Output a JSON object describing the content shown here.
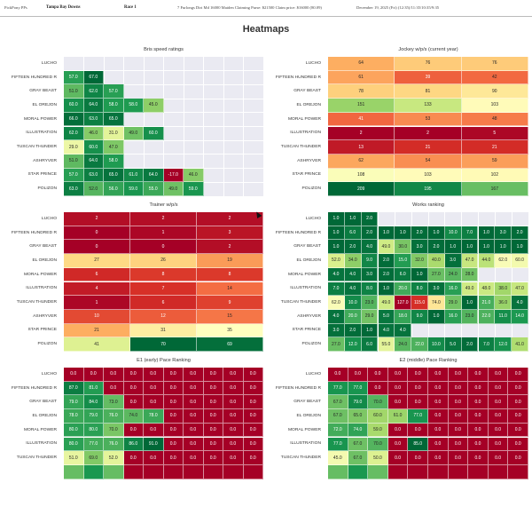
{
  "header": {
    "app_name": "PickPony PPs",
    "track": "Tampa Bay Downs",
    "race": "Race 1",
    "race_info": "7 Furlongs Dirt Md 16000 Maiden Claiming Purse: $21500 Claim price: $16000 (80.09)",
    "date": "December 19, 2025 (Fri) (12:35)/11:35/10:35/9:35"
  },
  "page_title": "Heatmaps",
  "colors": {
    "empty_bg": "#eaeaf2",
    "scale_low": "#a50026",
    "scale_mid": "#ffffbf",
    "scale_high": "#006837"
  },
  "chart_data": [
    {
      "type": "heatmap",
      "id": "bris",
      "title": "Bris speed ratings",
      "rows": [
        "LUCHO",
        "FIFTEEN HUNDRED R",
        "GRAY BEAST",
        "EL OREJON",
        "MORAL POWER",
        "ILLUSTRATION",
        "TUSCAN THUNDER",
        "ASHRYVER",
        "STAR PRINCE",
        "POLIZON"
      ],
      "n_cols": 10,
      "values": [
        [],
        [
          57.0,
          67.0
        ],
        [
          51.0,
          62.0,
          57.0
        ],
        [
          60.0,
          64.0,
          58.0,
          58.0,
          45.0
        ],
        [
          66.0,
          63.0,
          65.0
        ],
        [
          62.0,
          46.0,
          31.0,
          49.0,
          60.0
        ],
        [
          29.0,
          60.0,
          47.0
        ],
        [
          51.0,
          64.0,
          58.0
        ],
        [
          57.0,
          63.0,
          65.0,
          61.0,
          64.0,
          -17.0,
          46.0
        ],
        [
          63.0,
          52.0,
          56.0,
          59.0,
          55.0,
          49.0,
          59.0
        ]
      ],
      "value_format": "1dp",
      "vmin": -17,
      "vmax": 67,
      "colormap": "RdYlGn"
    },
    {
      "type": "heatmap",
      "id": "jockey",
      "title": "Jockey w/p/s (current year)",
      "rows": [
        "LUCHO",
        "FIFTEEN HUNDRED R",
        "GRAY BEAST",
        "EL OREJON",
        "MORAL POWER",
        "ILLUSTRATION",
        "TUSCAN THUNDER",
        "ASHRYVER",
        "STAR PRINCE",
        "POLIZON"
      ],
      "n_cols": 3,
      "values": [
        [
          64,
          76,
          76
        ],
        [
          61,
          39,
          42
        ],
        [
          78,
          81,
          90
        ],
        [
          151,
          133,
          103
        ],
        [
          41,
          53,
          48
        ],
        [
          2,
          2,
          5
        ],
        [
          13,
          21,
          21
        ],
        [
          62,
          54,
          59
        ],
        [
          108,
          103,
          102
        ],
        [
          209,
          195,
          167
        ]
      ],
      "value_format": "int",
      "vmin": 2,
      "vmax": 209,
      "colormap": "RdYlGn"
    },
    {
      "type": "heatmap",
      "id": "trainer",
      "title": "Trainer w/p/s",
      "rows": [
        "LUCHO",
        "FIFTEEN HUNDRED R",
        "GRAY BEAST",
        "EL OREJON",
        "MORAL POWER",
        "ILLUSTRATION",
        "TUSCAN THUNDER",
        "ASHRYVER",
        "STAR PRINCE",
        "POLIZON"
      ],
      "n_cols": 3,
      "values": [
        [
          2,
          2,
          2
        ],
        [
          0,
          1,
          3
        ],
        [
          0,
          0,
          2
        ],
        [
          27,
          26,
          19
        ],
        [
          6,
          8,
          8
        ],
        [
          4,
          7,
          14
        ],
        [
          1,
          6,
          9
        ],
        [
          10,
          12,
          15
        ],
        [
          21,
          31,
          35
        ],
        [
          41,
          70,
          69
        ]
      ],
      "value_format": "int",
      "vmin": 0,
      "vmax": 70,
      "colormap": "RdYlGn"
    },
    {
      "type": "heatmap",
      "id": "works",
      "title": "Works ranking",
      "rows": [
        "LUCHO",
        "FIFTEEN HUNDRED R",
        "GRAY BEAST",
        "EL OREJON",
        "MORAL POWER",
        "ILLUSTRATION",
        "TUSCAN THUNDER",
        "ASHRYVER",
        "STAR PRINCE",
        "POLIZON"
      ],
      "n_cols": 12,
      "values": [
        [
          1.0,
          1.0,
          2.0
        ],
        [
          1.0,
          6.0,
          2.0,
          1.0,
          1.0,
          2.0,
          1.0,
          10.0,
          7.0,
          1.0,
          3.0,
          2.0
        ],
        [
          1.0,
          2.0,
          4.0,
          49.0,
          30.0,
          3.0,
          2.0,
          1.0,
          1.0,
          1.0,
          1.0,
          1.0
        ],
        [
          52.0,
          34.0,
          9.0,
          2.0,
          15.0,
          32.0,
          40.0,
          3.0,
          47.0,
          44.0,
          62.0,
          60.0
        ],
        [
          4.0,
          4.0,
          3.0,
          2.0,
          6.0,
          1.0,
          27.0,
          24.0,
          28.0
        ],
        [
          7.0,
          4.0,
          8.0,
          1.0,
          20.0,
          8.0,
          3.0,
          16.0,
          49.0,
          48.0,
          38.0,
          47.0
        ],
        [
          62.0,
          10.0,
          23.0,
          49.0,
          127.0,
          115.0,
          74.0,
          29.0,
          1.0,
          21.0,
          36.0,
          4.0
        ],
        [
          4.0,
          20.0,
          29.0,
          5.0,
          18.0,
          9.0,
          1.0,
          16.0,
          23.0,
          22.0,
          11.0,
          14.0
        ],
        [
          3.0,
          2.0,
          1.0,
          4.0,
          4.0
        ],
        [
          27.0,
          12.0,
          6.0,
          55.0,
          24.0,
          22.0,
          10.0,
          5.0,
          2.0,
          7.0,
          12.0,
          41.0
        ]
      ],
      "value_format": "1dp",
      "vmin": 1,
      "vmax": 127,
      "colormap": "RdYlGn_r"
    },
    {
      "type": "heatmap",
      "id": "e1",
      "title": "E1 (early) Pace Ranking",
      "rows": [
        "LUCHO",
        "FIFTEEN HUNDRED R",
        "GRAY BEAST",
        "EL OREJON",
        "MORAL POWER",
        "ILLUSTRATION",
        "TUSCAN THUNDER"
      ],
      "n_cols": 10,
      "values": [
        [
          0.0,
          0.0,
          0.0,
          0.0,
          0.0,
          0.0,
          0.0,
          0.0,
          0.0,
          0.0
        ],
        [
          87.0,
          81.0,
          0.0,
          0.0,
          0.0,
          0.0,
          0.0,
          0.0,
          0.0,
          0.0
        ],
        [
          79.0,
          84.0,
          73.0,
          0.0,
          0.0,
          0.0,
          0.0,
          0.0,
          0.0,
          0.0
        ],
        [
          78.0,
          79.0,
          76.0,
          74.0,
          78.0,
          0.0,
          0.0,
          0.0,
          0.0,
          0.0
        ],
        [
          80.0,
          80.0,
          70.0,
          0.0,
          0.0,
          0.0,
          0.0,
          0.0,
          0.0,
          0.0
        ],
        [
          80.0,
          77.0,
          76.0,
          86.0,
          91.0,
          0.0,
          0.0,
          0.0,
          0.0,
          0.0
        ],
        [
          51.0,
          69.0,
          52.0,
          0.0,
          0.0,
          0.0,
          0.0,
          0.0,
          0.0,
          0.0
        ]
      ],
      "value_format": "1dp",
      "vmin": 0,
      "vmax": 91,
      "colormap": "RdYlGn",
      "truncated": true
    },
    {
      "type": "heatmap",
      "id": "e2",
      "title": "E2 (middle) Pace Ranking",
      "rows": [
        "LUCHO",
        "FIFTEEN HUNDRED R",
        "GRAY BEAST",
        "EL OREJON",
        "MORAL POWER",
        "ILLUSTRATION",
        "TUSCAN THUNDER"
      ],
      "n_cols": 10,
      "values": [
        [
          0.0,
          0.0,
          0.0,
          0.0,
          0.0,
          0.0,
          0.0,
          0.0,
          0.0,
          0.0
        ],
        [
          77.0,
          77.0,
          0.0,
          0.0,
          0.0,
          0.0,
          0.0,
          0.0,
          0.0,
          0.0
        ],
        [
          67.0,
          79.0,
          70.0,
          0.0,
          0.0,
          0.0,
          0.0,
          0.0,
          0.0,
          0.0
        ],
        [
          67.0,
          65.0,
          60.0,
          61.0,
          77.0,
          0.0,
          0.0,
          0.0,
          0.0,
          0.0
        ],
        [
          72.0,
          74.0,
          59.0,
          0.0,
          0.0,
          0.0,
          0.0,
          0.0,
          0.0,
          0.0
        ],
        [
          77.0,
          67.0,
          70.0,
          0.0,
          85.0,
          0.0,
          0.0,
          0.0,
          0.0,
          0.0
        ],
        [
          45.0,
          67.0,
          50.0,
          0.0,
          0.0,
          0.0,
          0.0,
          0.0,
          0.0,
          0.0
        ]
      ],
      "value_format": "1dp",
      "vmin": 0,
      "vmax": 85,
      "colormap": "RdYlGn",
      "truncated": true
    }
  ]
}
